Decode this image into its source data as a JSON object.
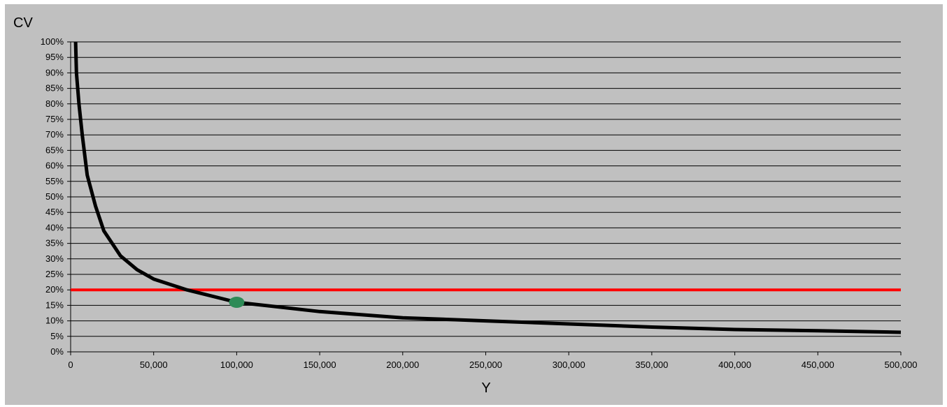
{
  "chart_data": {
    "type": "line",
    "ylabel": "CV",
    "xlabel": "Y",
    "xlim": [
      0,
      500000
    ],
    "ylim": [
      0,
      100
    ],
    "x_ticks": [
      "0",
      "50,000",
      "100,000",
      "150,000",
      "200,000",
      "250,000",
      "300,000",
      "350,000",
      "400,000",
      "450,000",
      "500,000"
    ],
    "y_ticks": [
      "0%",
      "5%",
      "10%",
      "15%",
      "20%",
      "25%",
      "30%",
      "35%",
      "40%",
      "45%",
      "50%",
      "55%",
      "60%",
      "65%",
      "70%",
      "75%",
      "80%",
      "85%",
      "90%",
      "95%",
      "100%"
    ],
    "grid": "horizontal",
    "series": [
      {
        "color": "#000000",
        "points": [
          [
            3000,
            100
          ],
          [
            3500,
            90
          ],
          [
            5000,
            80
          ],
          [
            7000,
            70
          ],
          [
            10000,
            57
          ],
          [
            15000,
            47
          ],
          [
            20000,
            39
          ],
          [
            30000,
            31
          ],
          [
            40000,
            26.5
          ],
          [
            50000,
            23.5
          ],
          [
            70000,
            20
          ],
          [
            100000,
            16
          ],
          [
            150000,
            13
          ],
          [
            200000,
            11
          ],
          [
            250000,
            10
          ],
          [
            300000,
            9
          ],
          [
            350000,
            8
          ],
          [
            400000,
            7.2
          ],
          [
            450000,
            6.8
          ],
          [
            500000,
            6.3
          ]
        ]
      }
    ],
    "threshold": {
      "y": 20,
      "color": "#ff0000"
    },
    "marker": {
      "x": 100000,
      "y": 16,
      "color": "#2e8b57"
    }
  }
}
